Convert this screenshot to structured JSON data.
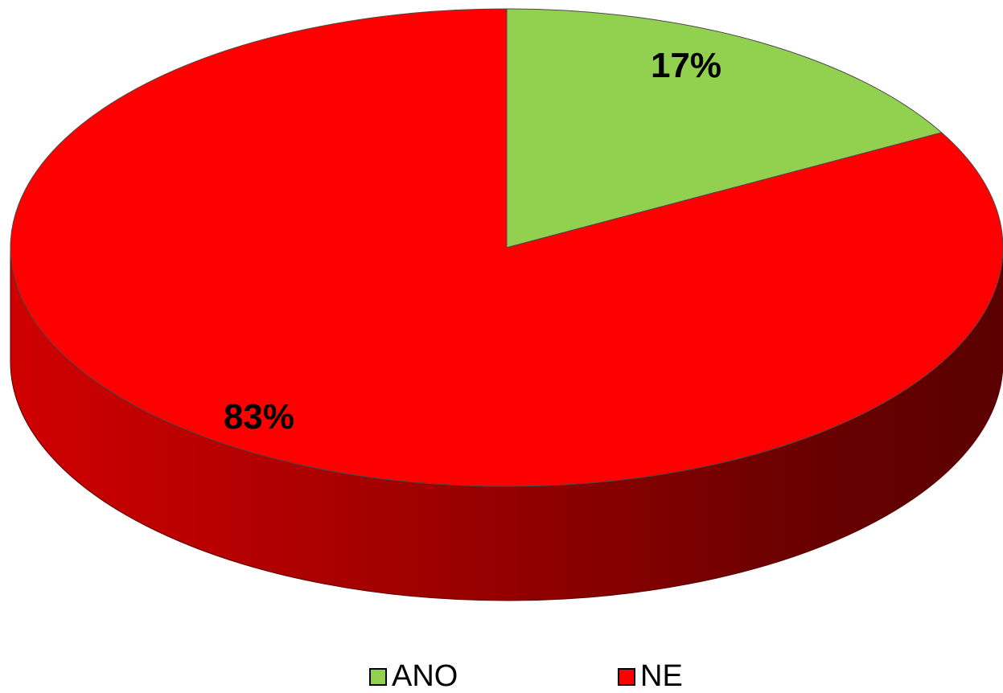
{
  "chart_data": {
    "type": "pie",
    "categories": [
      "ANO",
      "NE"
    ],
    "values": [
      17,
      83
    ],
    "data_labels": [
      "17%",
      "83%"
    ],
    "colors": [
      "#92d050",
      "#ff0000"
    ],
    "legend_position": "bottom",
    "style": "3d"
  },
  "legend": {
    "items": [
      {
        "label": "ANO",
        "color": "#92d050"
      },
      {
        "label": "NE",
        "color": "#ff0000"
      }
    ]
  }
}
